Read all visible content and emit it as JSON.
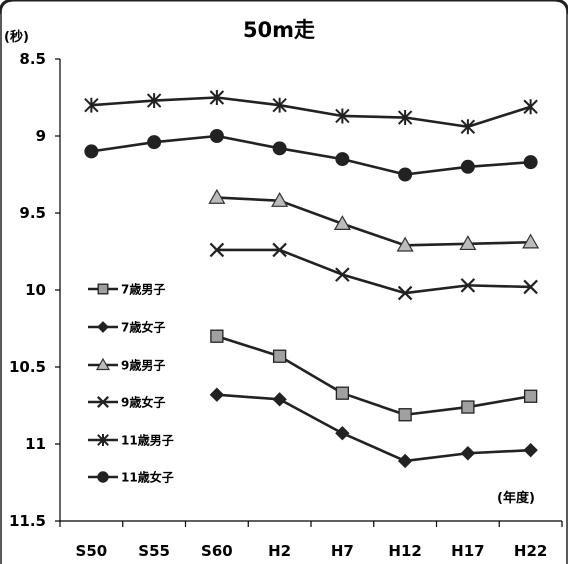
{
  "chart_data": {
    "type": "line",
    "title": "50m走",
    "y_unit_label": "(秒)",
    "x_unit_label": "(年度)",
    "categories": [
      "S50",
      "S55",
      "S60",
      "H2",
      "H7",
      "H12",
      "H17",
      "H22"
    ],
    "ylim": [
      8.5,
      11.5
    ],
    "y_inverted": true,
    "y_ticks": [
      "8.5",
      "9",
      "9.5",
      "10",
      "10.5",
      "11",
      "11.5"
    ],
    "legend_position": "left",
    "series": [
      {
        "name": "7歳男子",
        "marker": "square",
        "values": [
          null,
          null,
          10.3,
          10.43,
          10.67,
          10.81,
          10.76,
          10.69
        ]
      },
      {
        "name": "7歳女子",
        "marker": "diamond",
        "values": [
          null,
          null,
          10.68,
          10.71,
          10.93,
          11.11,
          11.06,
          11.04
        ]
      },
      {
        "name": "9歳男子",
        "marker": "triangle",
        "values": [
          null,
          null,
          9.4,
          9.42,
          9.57,
          9.71,
          9.7,
          9.69
        ]
      },
      {
        "name": "9歳女子",
        "marker": "x",
        "values": [
          null,
          null,
          9.74,
          9.74,
          9.9,
          10.02,
          9.97,
          9.98
        ]
      },
      {
        "name": "11歳男子",
        "marker": "asterisk",
        "values": [
          8.8,
          8.77,
          8.75,
          8.8,
          8.87,
          8.88,
          8.94,
          8.81
        ]
      },
      {
        "name": "11歳女子",
        "marker": "circle",
        "values": [
          9.1,
          9.04,
          9.0,
          9.08,
          9.15,
          9.25,
          9.2,
          9.17
        ]
      }
    ]
  }
}
